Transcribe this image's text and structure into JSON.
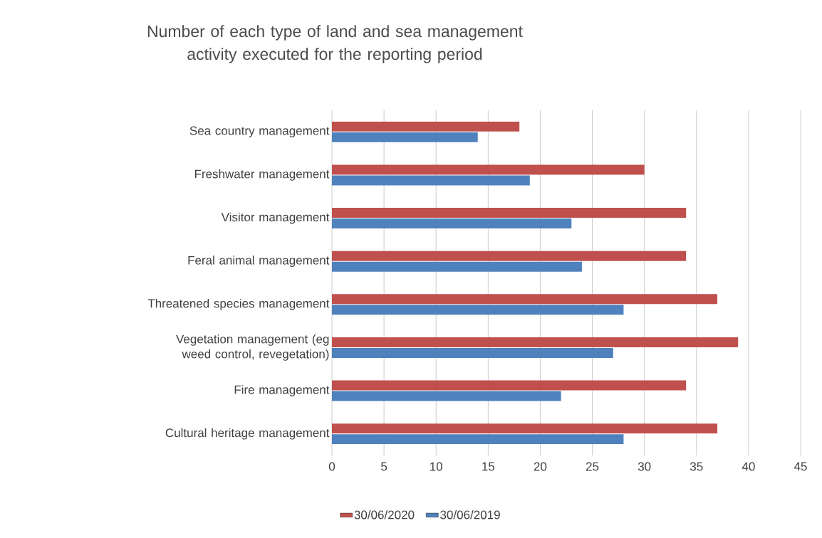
{
  "chart_data": {
    "type": "bar",
    "orientation": "horizontal",
    "title": "Number of each type of land and sea management activity executed for the reporting period",
    "categories": [
      "Sea country management",
      "Freshwater management",
      "Visitor management",
      "Feral animal management",
      "Threatened species management",
      "Vegetation management (eg weed control, revegetation)",
      "Fire management",
      "Cultural heritage management"
    ],
    "series": [
      {
        "name": "30/06/2020",
        "color": "#c0504d",
        "values": [
          18,
          30,
          34,
          34,
          37,
          39,
          34,
          37
        ]
      },
      {
        "name": "30/06/2019",
        "color": "#4f81bd",
        "values": [
          14,
          19,
          23,
          24,
          28,
          27,
          22,
          28
        ]
      }
    ],
    "xlim": [
      0,
      45
    ],
    "xticks": [
      0,
      5,
      10,
      15,
      20,
      25,
      30,
      35,
      40,
      45
    ],
    "grid": "x",
    "legend": "bottom"
  }
}
